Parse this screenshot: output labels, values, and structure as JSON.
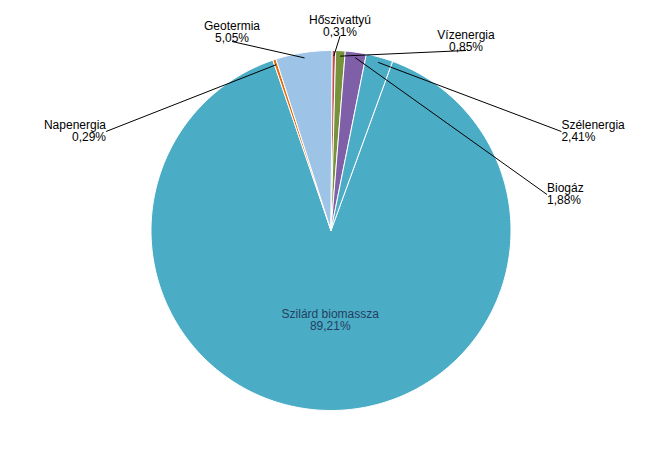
{
  "chart_data": {
    "type": "pie",
    "categories": [
      "Szilárd biomassza",
      "Napenergia",
      "Geotermia",
      "Hőszivattyú",
      "Vízenergia",
      "Biogáz",
      "Szélenergia"
    ],
    "values": [
      89.21,
      0.29,
      5.05,
      0.31,
      0.85,
      1.88,
      2.41
    ],
    "value_labels": [
      "89,21%",
      "0,29%",
      "5,05%",
      "0,31%",
      "0,85%",
      "1,88%",
      "2,41%"
    ],
    "colors": [
      "#4BACC6",
      "#E36C09",
      "#9DC3E6",
      "#C0504D",
      "#76933C",
      "#7F5FA8",
      "#4BACC6"
    ],
    "data_labels": true
  }
}
